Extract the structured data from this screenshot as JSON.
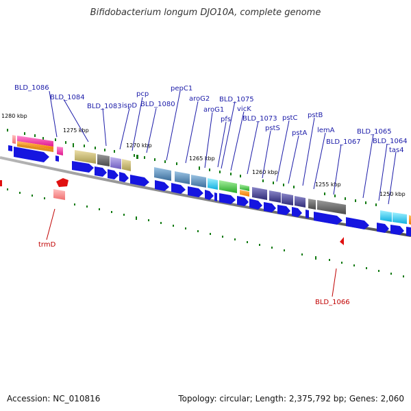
{
  "title": "Bifidobacterium longum DJO10A, complete genome",
  "footer": {
    "accession": "Accession: NC_010816",
    "summary": "Topology: circular; Length: 2,375,792 bp; Genes: 2,060"
  },
  "ticks": [
    {
      "label": "1280 kbp"
    },
    {
      "label": "1275 kbp"
    },
    {
      "label": "1270 kbp"
    },
    {
      "label": "1265 kbp"
    },
    {
      "label": "1260 kbp"
    },
    {
      "label": "1255 kbp"
    },
    {
      "label": "1250 kbp"
    }
  ],
  "gene_labels": [
    {
      "name": "BLD_1086",
      "strand": "forward"
    },
    {
      "name": "BLD_1084",
      "strand": "forward"
    },
    {
      "name": "BLD_1083",
      "strand": "forward"
    },
    {
      "name": "ispD",
      "strand": "forward"
    },
    {
      "name": "pcp",
      "strand": "forward"
    },
    {
      "name": "BLD_1080",
      "strand": "forward"
    },
    {
      "name": "pepC1",
      "strand": "forward"
    },
    {
      "name": "aroG2",
      "strand": "forward"
    },
    {
      "name": "aroG1",
      "strand": "forward"
    },
    {
      "name": "BLD_1075",
      "strand": "forward"
    },
    {
      "name": "vicK",
      "strand": "forward"
    },
    {
      "name": "pfs",
      "strand": "forward"
    },
    {
      "name": "BLD_1073",
      "strand": "forward"
    },
    {
      "name": "pstS",
      "strand": "forward"
    },
    {
      "name": "pstC",
      "strand": "forward"
    },
    {
      "name": "pstB",
      "strand": "forward"
    },
    {
      "name": "pstA",
      "strand": "forward"
    },
    {
      "name": "lemA",
      "strand": "forward"
    },
    {
      "name": "BLD_1067",
      "strand": "forward"
    },
    {
      "name": "BLD_1065",
      "strand": "forward"
    },
    {
      "name": "BLD_1064",
      "strand": "forward"
    },
    {
      "name": "tas4",
      "strand": "forward"
    },
    {
      "name": "trmD",
      "strand": "reverse"
    },
    {
      "name": "BLD_1066",
      "strand": "reverse"
    }
  ],
  "colors": {
    "cds": "#1515e0",
    "reverse_feature": "#e01010",
    "backbone": "#808080",
    "tick_mark": "#117a11",
    "label_forward": "#1a1aa8",
    "label_reverse": "#c00000"
  }
}
